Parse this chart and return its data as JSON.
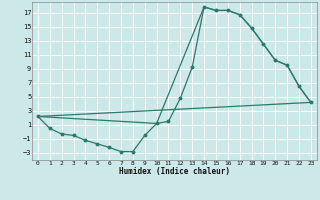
{
  "xlabel": "Humidex (Indice chaleur)",
  "bg_color": "#cce8e8",
  "grid_color": "#ffffff",
  "line_color": "#2a7a6a",
  "xlim": [
    -0.5,
    23.5
  ],
  "ylim": [
    -4,
    18.5
  ],
  "xticks": [
    0,
    1,
    2,
    3,
    4,
    5,
    6,
    7,
    8,
    9,
    10,
    11,
    12,
    13,
    14,
    15,
    16,
    17,
    18,
    19,
    20,
    21,
    22,
    23
  ],
  "yticks": [
    -3,
    -1,
    1,
    3,
    5,
    7,
    9,
    11,
    13,
    15,
    17
  ],
  "curve1_x": [
    0,
    1,
    2,
    3,
    4,
    5,
    6,
    7,
    8,
    9,
    10,
    11,
    12,
    13,
    14,
    15,
    16,
    17,
    18,
    19,
    20,
    21,
    22,
    23
  ],
  "curve1_y": [
    2.2,
    0.5,
    -0.3,
    -0.5,
    -1.2,
    -1.7,
    -2.2,
    -2.8,
    -2.8,
    -0.5,
    1.2,
    1.5,
    4.8,
    9.2,
    17.8,
    17.3,
    17.3,
    16.7,
    14.8,
    12.5,
    10.2,
    9.5,
    6.5,
    4.2
  ],
  "curve2_x": [
    0,
    10,
    14,
    15,
    16,
    17,
    18,
    19,
    20,
    21,
    22,
    23
  ],
  "curve2_y": [
    2.2,
    1.2,
    17.8,
    17.3,
    17.3,
    16.7,
    14.8,
    12.5,
    10.2,
    9.5,
    6.5,
    4.2
  ],
  "curve3_x": [
    0,
    23
  ],
  "curve3_y": [
    2.2,
    4.2
  ]
}
